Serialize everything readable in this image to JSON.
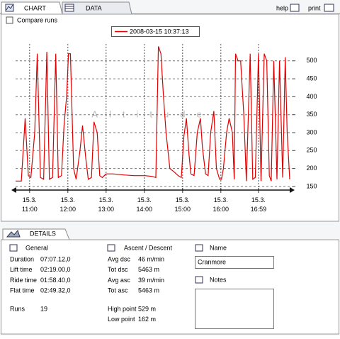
{
  "tabs": [
    "CHART",
    "DATA"
  ],
  "help": "help",
  "print": "print",
  "compare_runs": "Compare runs",
  "chart_data": {
    "type": "line",
    "watermark": "Altitude",
    "grid": true,
    "x": [
      38,
      47,
      53,
      58,
      62,
      68,
      72,
      77,
      82,
      87,
      91,
      96,
      101,
      105,
      110,
      114,
      118,
      121,
      124,
      129,
      133,
      139,
      143,
      148,
      152,
      157,
      161,
      166,
      170,
      174,
      180,
      191,
      208,
      224,
      241,
      252,
      258,
      262,
      266,
      270,
      274,
      280,
      287,
      293,
      298,
      302,
      306,
      310,
      313,
      318,
      323,
      328,
      331,
      336,
      340,
      344,
      349,
      353,
      358,
      361,
      364,
      369,
      373,
      378,
      381,
      383,
      387,
      391,
      396,
      400,
      406,
      410,
      414,
      419,
      423,
      428,
      432,
      436,
      439,
      443,
      448,
      452,
      457,
      461,
      464,
      468
    ],
    "series": [
      {
        "name": "2008-03-15 10:37:13",
        "color": "#e00000",
        "values": [
          165,
          165,
          340,
          180,
          175,
          300,
          520,
          175,
          170,
          525,
          170,
          175,
          520,
          175,
          180,
          320,
          400,
          520,
          520,
          200,
          170,
          250,
          320,
          230,
          170,
          175,
          330,
          300,
          180,
          175,
          185,
          185,
          182,
          180,
          180,
          178,
          175,
          540,
          520,
          400,
          300,
          200,
          190,
          180,
          175,
          290,
          340,
          240,
          185,
          180,
          300,
          340,
          260,
          185,
          180,
          300,
          360,
          200,
          170,
          170,
          200,
          300,
          340,
          300,
          170,
          520,
          500,
          500,
          350,
          165,
          520,
          170,
          175,
          520,
          165,
          520,
          500,
          180,
          165,
          500,
          170,
          500,
          175,
          510,
          300,
          170
        ]
      }
    ],
    "xlim": [
      38,
      468
    ],
    "xticks": [
      {
        "value": 60,
        "label": "15.3.\n11:00"
      },
      {
        "value": 120,
        "label": "15.3.\n12:00"
      },
      {
        "value": 180,
        "label": "15.3.\n13:00"
      },
      {
        "value": 240,
        "label": "15.3.\n14:00"
      },
      {
        "value": 300,
        "label": "15.3.\n15:00"
      },
      {
        "value": 360,
        "label": "15.3.\n16:00"
      },
      {
        "value": 419,
        "label": "15.3.\n16:59"
      }
    ],
    "ylim": [
      136,
      547
    ],
    "yticks": [
      150,
      200,
      250,
      300,
      350,
      400,
      450,
      500
    ]
  },
  "details": {
    "tab": "DETAILS",
    "general": {
      "title": "General",
      "rows": [
        [
          "Duration",
          "07:07.12,0"
        ],
        [
          "Lift time",
          "02:19.00,0"
        ],
        [
          "Ride time",
          "01:58.40,0"
        ],
        [
          "Flat time",
          "02:49.32,0"
        ]
      ],
      "runs": [
        "Runs",
        "19"
      ]
    },
    "ascent": {
      "title": "Ascent / Descent",
      "rows": [
        [
          "Avg dsc",
          "46 m/min"
        ],
        [
          "Tot dsc",
          "5463 m"
        ],
        [
          "Avg asc",
          "39 m/min"
        ],
        [
          "Tot asc",
          "5463 m"
        ]
      ],
      "points": [
        [
          "High point",
          "529 m"
        ],
        [
          "Low point",
          "162 m"
        ]
      ]
    },
    "name": {
      "title": "Name",
      "value": "Cranmore"
    },
    "notes": {
      "title": "Notes"
    }
  }
}
